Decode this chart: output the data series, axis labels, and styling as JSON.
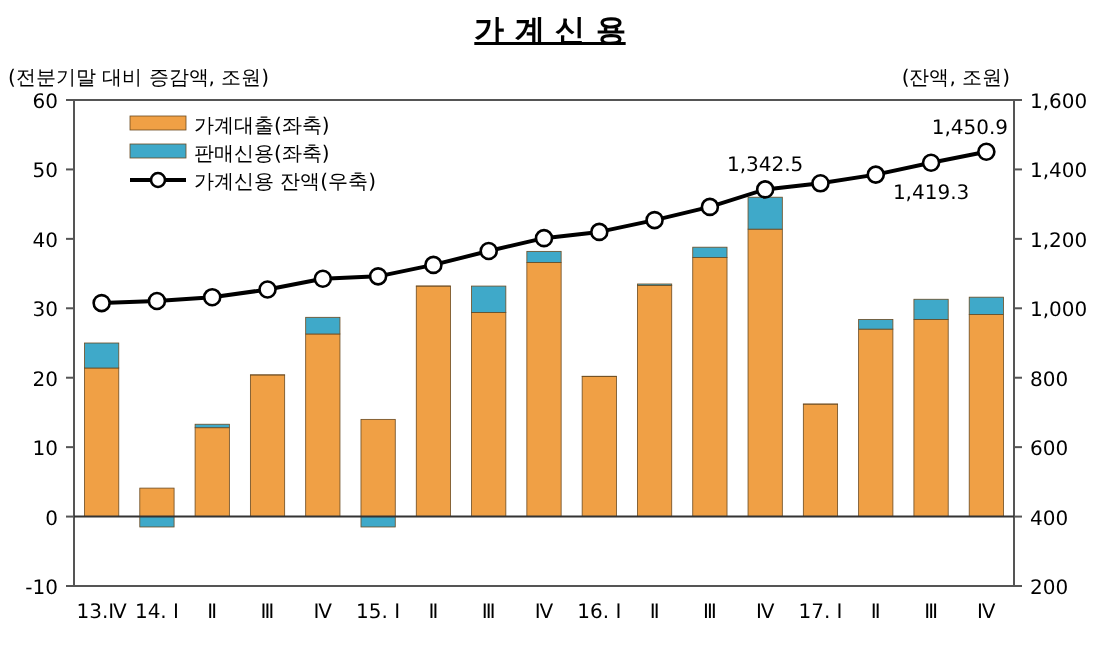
{
  "chart_data": {
    "type": "bar",
    "title": "가 계 신 용",
    "ylabel": "(전분기말 대비 증감액, 조원)",
    "y2label": "(잔액, 조원)",
    "categories": [
      "13.Ⅳ",
      "14. Ⅰ",
      "Ⅱ",
      "Ⅲ",
      "Ⅳ",
      "15. Ⅰ",
      "Ⅱ",
      "Ⅲ",
      "Ⅳ",
      "16. Ⅰ",
      "Ⅱ",
      "Ⅲ",
      "Ⅳ",
      "17. Ⅰ",
      "Ⅱ",
      "Ⅲ",
      "Ⅳ"
    ],
    "stacked": true,
    "series": [
      {
        "name": "가계대출(좌축)",
        "color": "#f0a045",
        "values": [
          21.4,
          4.1,
          12.8,
          20.4,
          26.3,
          14.0,
          33.2,
          29.4,
          36.6,
          20.2,
          33.3,
          37.3,
          41.4,
          16.2,
          27.0,
          28.4,
          29.1
        ]
      },
      {
        "name": "판매신용(좌축)",
        "color": "#3fa9c9",
        "values": [
          3.6,
          -1.5,
          0.5,
          0.0,
          2.4,
          -1.5,
          0.0,
          3.8,
          1.6,
          0.0,
          0.2,
          1.5,
          4.6,
          0.0,
          1.4,
          2.9,
          2.5
        ]
      },
      {
        "name": "가계신용 잔액(우축)",
        "type": "line",
        "axis": "y2",
        "color": "#000000",
        "values": [
          1015,
          1021,
          1032,
          1054,
          1085,
          1092,
          1125,
          1165,
          1202,
          1220,
          1254,
          1292,
          1342.5,
          1360,
          1385,
          1419.3,
          1450.9
        ],
        "value_labels": [
          null,
          null,
          null,
          null,
          null,
          null,
          null,
          null,
          null,
          null,
          null,
          null,
          "1,342.5",
          null,
          null,
          "1,419.3",
          "1,450.9"
        ]
      }
    ],
    "marker": "circle",
    "ylim": [
      -10,
      60
    ],
    "yticks": [
      -10,
      0,
      10,
      20,
      30,
      40,
      50,
      60
    ],
    "y2lim": [
      200,
      1600
    ],
    "y2ticks": [
      200,
      400,
      600,
      800,
      {
        "value": 1000,
        "label": "1,000"
      },
      {
        "value": 1200,
        "label": "1,200"
      },
      {
        "value": 1400,
        "label": "1,400"
      },
      {
        "value": 1600,
        "label": "1,600"
      }
    ],
    "legend": "top left"
  }
}
